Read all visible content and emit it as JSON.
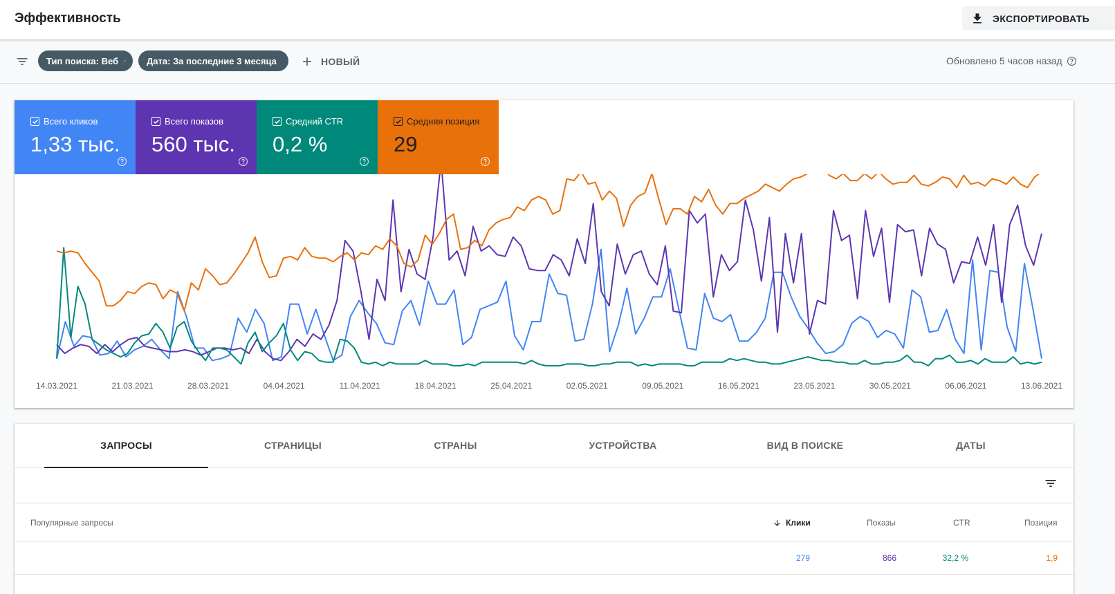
{
  "header": {
    "title": "Эффективность",
    "export_label": "ЭКСПОРТИРОВАТЬ"
  },
  "filters": {
    "chips": [
      "Тип поиска: Веб",
      "Дата: За последние 3 месяца"
    ],
    "new_label": "НОВЫЙ",
    "updated_text": "Обновлено 5 часов назад"
  },
  "metrics": {
    "clicks": {
      "label": "Всего кликов",
      "value": "1,33 тыс."
    },
    "impressions": {
      "label": "Всего показов",
      "value": "560 тыс."
    },
    "ctr": {
      "label": "Средний CTR",
      "value": "0,2 %"
    },
    "position": {
      "label": "Средняя позиция",
      "value": "29"
    }
  },
  "colors": {
    "clicks": "#4285f4",
    "impressions": "#5e35b1",
    "ctr": "#00897b",
    "position": "#e8710a"
  },
  "chart_data": {
    "type": "line",
    "title": "",
    "x_ticks": [
      "14.03.2021",
      "21.03.2021",
      "28.03.2021",
      "04.04.2021",
      "11.04.2021",
      "18.04.2021",
      "25.04.2021",
      "02.05.2021",
      "09.05.2021",
      "16.05.2021",
      "23.05.2021",
      "30.05.2021",
      "06.06.2021",
      "13.06.2021"
    ],
    "scale": [
      0,
      100
    ],
    "series": [
      {
        "name": "Клики",
        "color": "#4285f4",
        "values": [
          6,
          27,
          13,
          19,
          18,
          8,
          9,
          16,
          7,
          11,
          13,
          17,
          11,
          6,
          44,
          30,
          12,
          12,
          5,
          6,
          8,
          29,
          21,
          34,
          26,
          5,
          7,
          37,
          37,
          20,
          34,
          19,
          5,
          8,
          30,
          39,
          32,
          26,
          15,
          14,
          33,
          39,
          25,
          50,
          37,
          37,
          45,
          14,
          18,
          34,
          36,
          38,
          50,
          19,
          11,
          27,
          27,
          54,
          43,
          42,
          16,
          17,
          37,
          68,
          10,
          25,
          46,
          20,
          29,
          41,
          41,
          57,
          34,
          12,
          11,
          43,
          29,
          27,
          31,
          16,
          16,
          21,
          29,
          55,
          55,
          41,
          30,
          23,
          15,
          9,
          10,
          14,
          26,
          30,
          27,
          18,
          22,
          20,
          12,
          45,
          41,
          21,
          22,
          34,
          17,
          9,
          62,
          11,
          56,
          55,
          24,
          10,
          60,
          34,
          6
        ]
      },
      {
        "name": "Показы",
        "color": "#5e35b1",
        "values": [
          14,
          9,
          12,
          14,
          13,
          9,
          14,
          10,
          14,
          17,
          18,
          13,
          12,
          11,
          10,
          10,
          11,
          10,
          8,
          10,
          12,
          12,
          11,
          12,
          9,
          17,
          10,
          6,
          5,
          10,
          17,
          13,
          20,
          17,
          25,
          39,
          73,
          67,
          44,
          17,
          51,
          39,
          96,
          44,
          68,
          54,
          51,
          75,
          118,
          62,
          67,
          53,
          81,
          67,
          70,
          65,
          64,
          75,
          70,
          57,
          56,
          56,
          65,
          62,
          53,
          74,
          60,
          94,
          44,
          36,
          71,
          54,
          65,
          67,
          54,
          48,
          70,
          33,
          32,
          90,
          83,
          88,
          41,
          65,
          56,
          61,
          96,
          79,
          50,
          86,
          21,
          77,
          49,
          77,
          20,
          39,
          37,
          90,
          73,
          76,
          40,
          90,
          64,
          80,
          38,
          82,
          78,
          79,
          53,
          80,
          71,
          68,
          49,
          61,
          60,
          75,
          59,
          82,
          38,
          82,
          93,
          70,
          59,
          77
        ]
      },
      {
        "name": "CTR",
        "color": "#00897b",
        "values": [
          6,
          69,
          18,
          47,
          37,
          17,
          14,
          11,
          9,
          7,
          9,
          15,
          19,
          20,
          26,
          21,
          12,
          24,
          27,
          16,
          10,
          5,
          12,
          12,
          11,
          7,
          3,
          15,
          21,
          10,
          15,
          19,
          26,
          11,
          5,
          10,
          9,
          5,
          4,
          4,
          17,
          16,
          12,
          4,
          3,
          4,
          2,
          4,
          3,
          3,
          3,
          3,
          5,
          3,
          3,
          3,
          2,
          2,
          3,
          2,
          4,
          4,
          4,
          4,
          4,
          4,
          3,
          5,
          3,
          2,
          2,
          2,
          3,
          3,
          3,
          2,
          2,
          3,
          3,
          4,
          4,
          4,
          2,
          3,
          2,
          3,
          3,
          3,
          3,
          2,
          2,
          4,
          4,
          4,
          4,
          6,
          5,
          6,
          5,
          4,
          4,
          3,
          3,
          4,
          5,
          6,
          7,
          6,
          5,
          5,
          4,
          4,
          3,
          3,
          5,
          3,
          3,
          4,
          4,
          5,
          8,
          4,
          4,
          2,
          6,
          6,
          8,
          4,
          4,
          5,
          3,
          6,
          4,
          4,
          4,
          7,
          3,
          4,
          3,
          4
        ]
      },
      {
        "name": "Позиция",
        "color": "#e8710a",
        "values": [
          67,
          66,
          67,
          66,
          60,
          55,
          50,
          36,
          36,
          39,
          44,
          43,
          47,
          49,
          48,
          40,
          45,
          43,
          33,
          49,
          45,
          57,
          53,
          48,
          49,
          54,
          60,
          66,
          75,
          61,
          52,
          53,
          63,
          64,
          62,
          69,
          64,
          63,
          63,
          61,
          64,
          66,
          62,
          66,
          65,
          70,
          68,
          74,
          70,
          60,
          58,
          62,
          76,
          71,
          77,
          85,
          88,
          68,
          69,
          73,
          70,
          79,
          83,
          85,
          86,
          92,
          90,
          96,
          98,
          96,
          88,
          90,
          108,
          107,
          112,
          105,
          106,
          96,
          101,
          97,
          81,
          93,
          98,
          100,
          111,
          96,
          82,
          91,
          91,
          88,
          98,
          95,
          102,
          93,
          88,
          94,
          94,
          97,
          99,
          101,
          105,
          103,
          101,
          105,
          108,
          109,
          111,
          112,
          116,
          110,
          108,
          111,
          107,
          107,
          111,
          108,
          112,
          108,
          105,
          106,
          106,
          110,
          105,
          104,
          106,
          109,
          108,
          103,
          110,
          105,
          106,
          104,
          108,
          107,
          105,
          109,
          105,
          103,
          109,
          112
        ]
      }
    ]
  },
  "table": {
    "tabs": [
      "ЗАПРОСЫ",
      "СТРАНИЦЫ",
      "СТРАНЫ",
      "УСТРОЙСТВА",
      "ВИД В ПОИСКЕ",
      "ДАТЫ"
    ],
    "columns": {
      "query": "Популярные запросы",
      "clicks": "Клики",
      "impressions": "Показы",
      "ctr": "CTR",
      "position": "Позиция"
    },
    "rows": [
      {
        "query": "",
        "clicks": "279",
        "impressions": "866",
        "ctr": "32,2 %",
        "position": "1,9"
      }
    ]
  }
}
